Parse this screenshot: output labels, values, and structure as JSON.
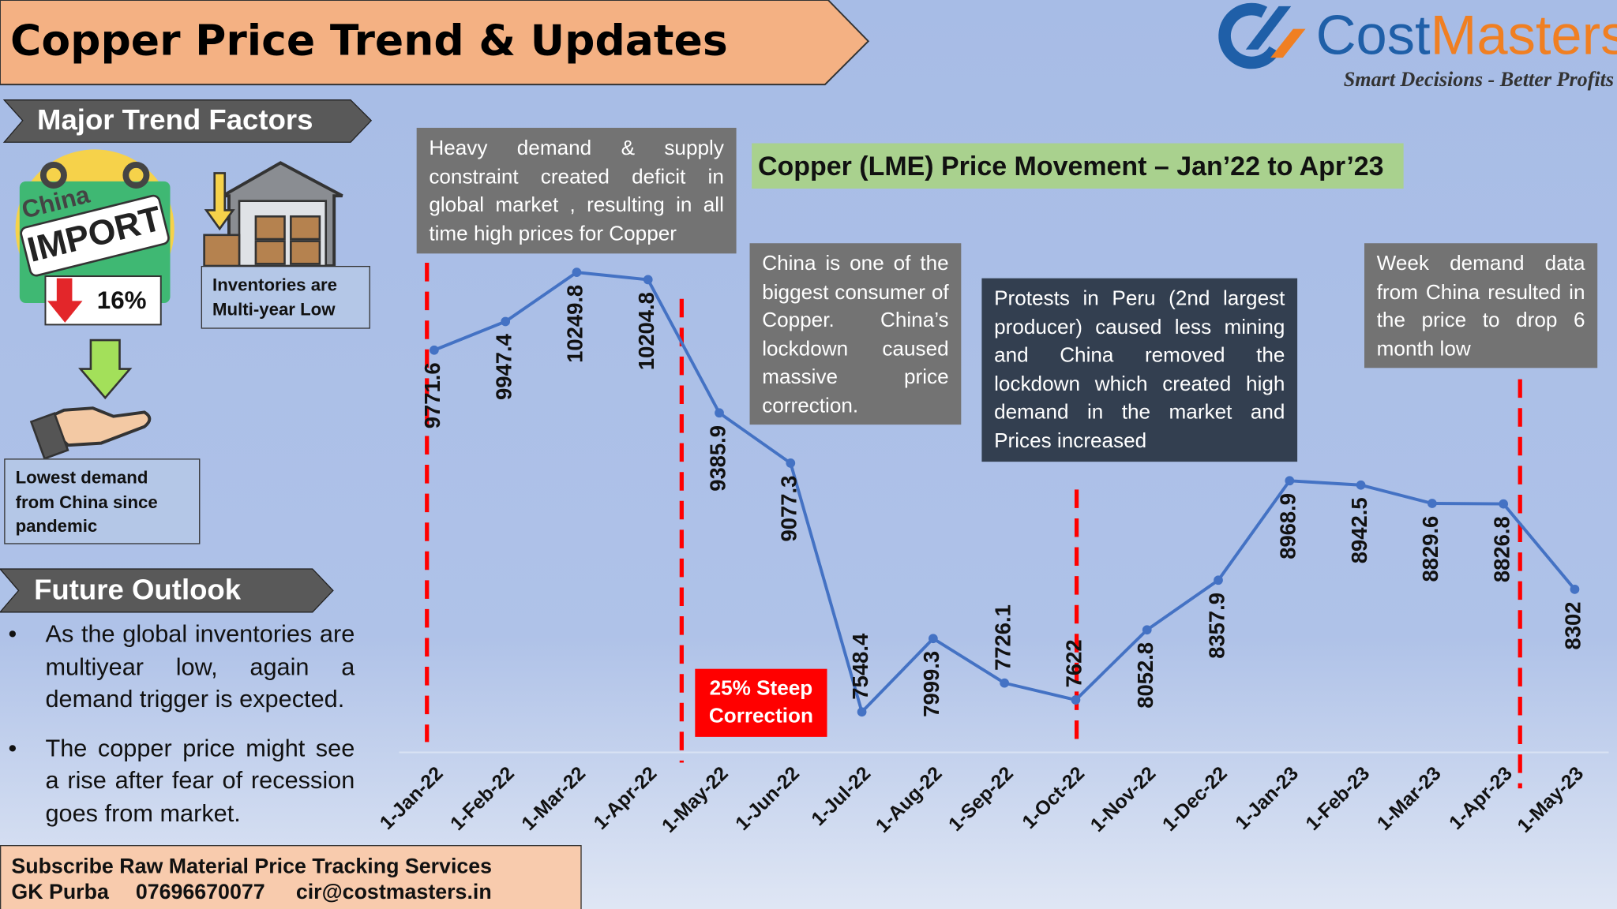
{
  "header": {
    "title": "Copper Price Trend & Updates"
  },
  "logo": {
    "name_part1": "Cost",
    "name_part2": "Masters",
    "tagline": "Smart Decisions - Better Profits"
  },
  "factors": {
    "heading": "Major Trend Factors",
    "china_label": "China",
    "import_label": "IMPORT",
    "import_change": "16%",
    "inventory_note": "Inventories are Multi-year Low",
    "demand_note": "Lowest demand from China since pandemic"
  },
  "outlook": {
    "heading": "Future Outlook",
    "bullets": [
      "As the global inventories are multiyear low, again a demand trigger is expected.",
      "The copper price might see a rise after fear of recession goes from market."
    ]
  },
  "footer": {
    "line1": "Subscribe Raw Material Price Tracking Services",
    "contact_name": "GK Purba",
    "phone": "07696670077",
    "email": "cir@costmasters.in"
  },
  "chart_data": {
    "type": "line",
    "title": "Copper (LME) Price Movement – Jan’22 to Apr’23",
    "categories": [
      "1-Jan-22",
      "1-Feb-22",
      "1-Mar-22",
      "1-Apr-22",
      "1-May-22",
      "1-Jun-22",
      "1-Jul-22",
      "1-Aug-22",
      "1-Sep-22",
      "1-Oct-22",
      "1-Nov-22",
      "1-Dec-22",
      "1-Jan-23",
      "1-Feb-23",
      "1-Mar-23",
      "1-Apr-23",
      "1-May-23"
    ],
    "values": [
      9771.6,
      9947.4,
      10249.8,
      10204.8,
      9385.9,
      9077.3,
      7548.4,
      7999.3,
      7726.1,
      7622,
      8052.8,
      8357.9,
      8968.9,
      8942.5,
      8829.6,
      8826.8,
      8302
    ],
    "color": "#4472c4",
    "ylim": [
      7300,
      11100
    ],
    "annotations": [
      "Heavy demand & supply constraint created deficit in global market , resulting in all time high prices for Copper",
      "China is one of the biggest consumer of Copper. China’s lockdown caused massive price correction.",
      "Protests in Peru (2nd largest producer) caused less mining and China removed the lockdown which created high demand in the market and Prices increased",
      "Week demand data from China resulted in the price to drop 6 month low",
      "25% Steep Correction"
    ]
  }
}
